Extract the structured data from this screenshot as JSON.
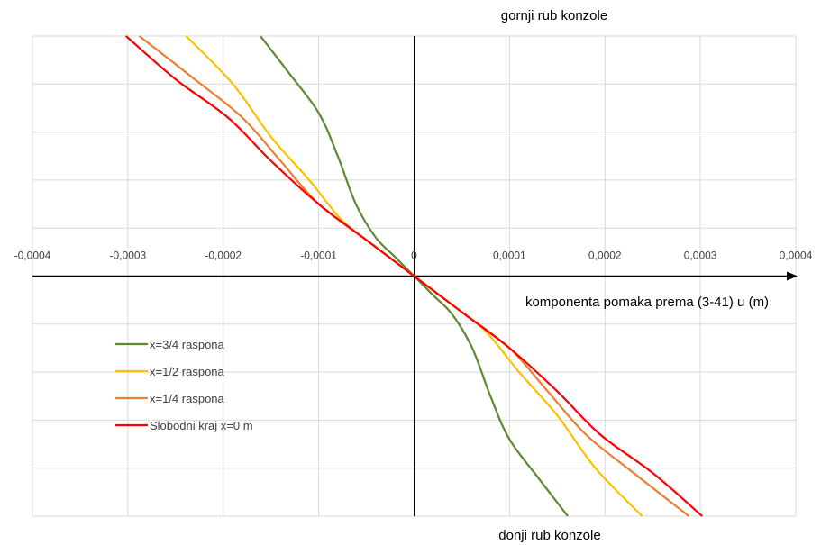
{
  "chart_data": {
    "type": "line",
    "title": "",
    "xlabel": "komponenta pomaka prema (3-41) u (m)",
    "ylabel": "",
    "xlim": [
      -0.0004,
      0.0004
    ],
    "ylim": [
      -1,
      1
    ],
    "x_ticks": [
      -0.0004,
      -0.0003,
      -0.0002,
      -0.0001,
      0,
      0.0001,
      0.0002,
      0.0003,
      0.0004
    ],
    "x_tick_labels": [
      "-0,0004",
      "-0,0003",
      "-0,0002",
      "-0,0001",
      "0",
      "0,0001",
      "0,0002",
      "0,0003",
      "0,0004"
    ],
    "y_gridlines": [
      -1,
      -0.8,
      -0.6,
      -0.4,
      -0.2,
      0,
      0.2,
      0.4,
      0.6,
      0.8,
      1
    ],
    "grid": true,
    "legend_position": "bottom-left",
    "annotations": {
      "top": "gornji rub konzole",
      "bottom": "donji rub konzole"
    },
    "series": [
      {
        "name": "x=3/4 raspona",
        "color": "#5B8A32",
        "points": [
          [
            -0.000161,
            1.0
          ],
          [
            -0.000132,
            0.85
          ],
          [
            -0.0001,
            0.68
          ],
          [
            -8e-05,
            0.5
          ],
          [
            -6.1e-05,
            0.3
          ],
          [
            -4e-05,
            0.16
          ],
          [
            -2e-05,
            0.08
          ],
          [
            0,
            0
          ],
          [
            2e-05,
            -0.08
          ],
          [
            4e-05,
            -0.16
          ],
          [
            6.1e-05,
            -0.3
          ],
          [
            8e-05,
            -0.5
          ],
          [
            0.0001,
            -0.68
          ],
          [
            0.000132,
            -0.85
          ],
          [
            0.000161,
            -1.0
          ]
        ]
      },
      {
        "name": "x=1/2 raspona",
        "color": "#FFC000",
        "points": [
          [
            -0.000239,
            1.0
          ],
          [
            -0.00019,
            0.8
          ],
          [
            -0.00015,
            0.58
          ],
          [
            -0.00011,
            0.4
          ],
          [
            -7.5e-05,
            0.23
          ],
          [
            -4e-05,
            0.12
          ],
          [
            0,
            0
          ],
          [
            4e-05,
            -0.12
          ],
          [
            7.5e-05,
            -0.23
          ],
          [
            0.00011,
            -0.4
          ],
          [
            0.00015,
            -0.58
          ],
          [
            0.00019,
            -0.8
          ],
          [
            0.000239,
            -1.0
          ]
        ]
      },
      {
        "name": "x=1/4 raspona",
        "color": "#ED7D31",
        "points": [
          [
            -0.000288,
            1.0
          ],
          [
            -0.00023,
            0.82
          ],
          [
            -0.00018,
            0.66
          ],
          [
            -0.00014,
            0.48
          ],
          [
            -0.0001,
            0.3
          ],
          [
            -5e-05,
            0.15
          ],
          [
            0,
            0
          ],
          [
            5e-05,
            -0.15
          ],
          [
            0.0001,
            -0.3
          ],
          [
            0.00014,
            -0.48
          ],
          [
            0.00018,
            -0.66
          ],
          [
            0.00023,
            -0.82
          ],
          [
            0.000288,
            -1.0
          ]
        ]
      },
      {
        "name": "Slobodni kraj x=0 m",
        "color": "#FF0000",
        "points": [
          [
            -0.000302,
            1.0
          ],
          [
            -0.00025,
            0.82
          ],
          [
            -0.000195,
            0.66
          ],
          [
            -0.00015,
            0.48
          ],
          [
            -0.0001,
            0.3
          ],
          [
            -5e-05,
            0.15
          ],
          [
            0,
            0
          ],
          [
            5e-05,
            -0.15
          ],
          [
            0.0001,
            -0.3
          ],
          [
            0.00015,
            -0.48
          ],
          [
            0.000195,
            -0.66
          ],
          [
            0.00025,
            -0.82
          ],
          [
            0.000302,
            -1.0
          ]
        ]
      }
    ]
  }
}
